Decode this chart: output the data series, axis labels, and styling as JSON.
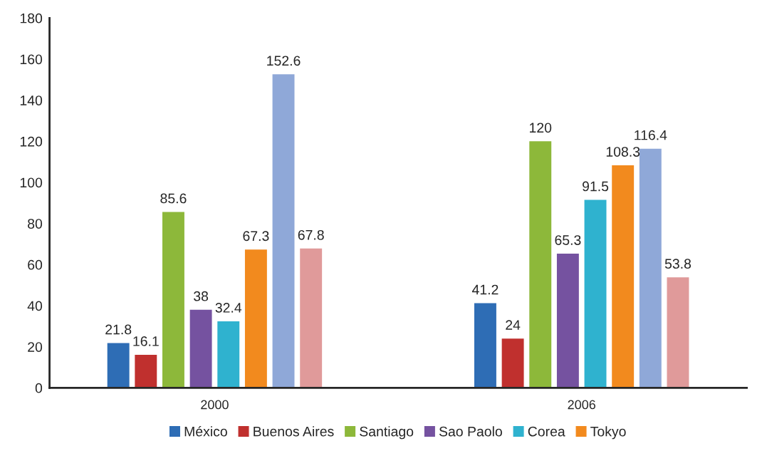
{
  "chart_data": {
    "type": "bar",
    "categories": [
      "2000",
      "2006"
    ],
    "series": [
      {
        "name": "México",
        "color": "#2e6db5",
        "values": [
          21.8,
          41.2
        ]
      },
      {
        "name": "Buenos Aires",
        "color": "#c0302e",
        "values": [
          16.1,
          24
        ]
      },
      {
        "name": "Santiago",
        "color": "#8db83a",
        "values": [
          85.6,
          120
        ]
      },
      {
        "name": "Sao Paolo",
        "color": "#7552a0",
        "values": [
          38,
          65.3
        ]
      },
      {
        "name": "Corea",
        "color": "#2fb2cf",
        "values": [
          32.4,
          91.5
        ]
      },
      {
        "name": "Tokyo",
        "color": "#f28a1e",
        "values": [
          67.3,
          108.3
        ]
      },
      {
        "color": "#8fa8d8",
        "values": [
          152.6,
          116.4
        ]
      },
      {
        "color": "#e09a9a",
        "values": [
          67.8,
          53.8
        ]
      }
    ],
    "ylim": [
      0,
      180
    ],
    "yticks": [
      0,
      20,
      40,
      60,
      80,
      100,
      120,
      140,
      160,
      180
    ],
    "grid": false,
    "legend": "bottom",
    "data_labels": true
  }
}
